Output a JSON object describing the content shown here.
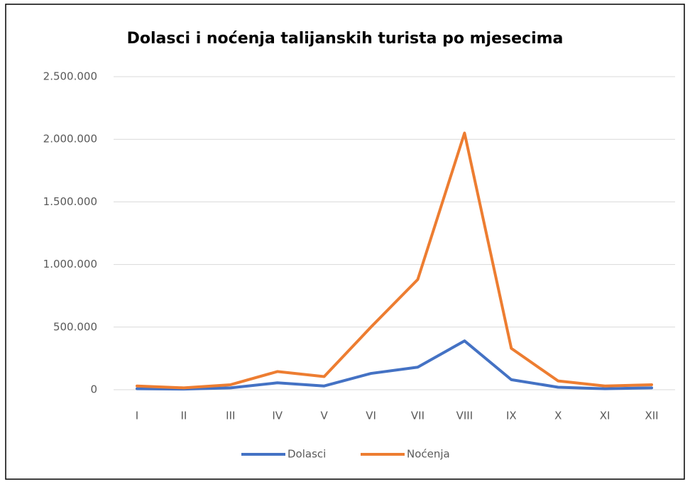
{
  "chart_data": {
    "type": "line",
    "title": "Dolasci i noćenja talijanskih turista po mjesecima",
    "categories": [
      "I",
      "II",
      "III",
      "IV",
      "V",
      "VI",
      "VII",
      "VIII",
      "IX",
      "X",
      "XI",
      "XII"
    ],
    "series": [
      {
        "name": "Dolasci",
        "color": "#4472c4",
        "values": [
          8000,
          5000,
          15000,
          55000,
          30000,
          130000,
          180000,
          390000,
          80000,
          20000,
          8000,
          15000
        ]
      },
      {
        "name": "Noćenja",
        "color": "#ed7d31",
        "values": [
          30000,
          15000,
          40000,
          145000,
          105000,
          500000,
          880000,
          2050000,
          330000,
          70000,
          30000,
          40000
        ]
      }
    ],
    "ylim": [
      0,
      2500000
    ],
    "yticks": [
      0,
      {
        "value": 500000,
        "label": "500.000"
      },
      {
        "value": 1000000,
        "label": "1.000.000"
      },
      {
        "value": 1500000,
        "label": "1.500.000"
      },
      {
        "value": 2000000,
        "label": "2.000.000"
      },
      {
        "value": 2500000,
        "label": "2.500.000"
      }
    ],
    "grid": true,
    "legend": "bottom"
  }
}
